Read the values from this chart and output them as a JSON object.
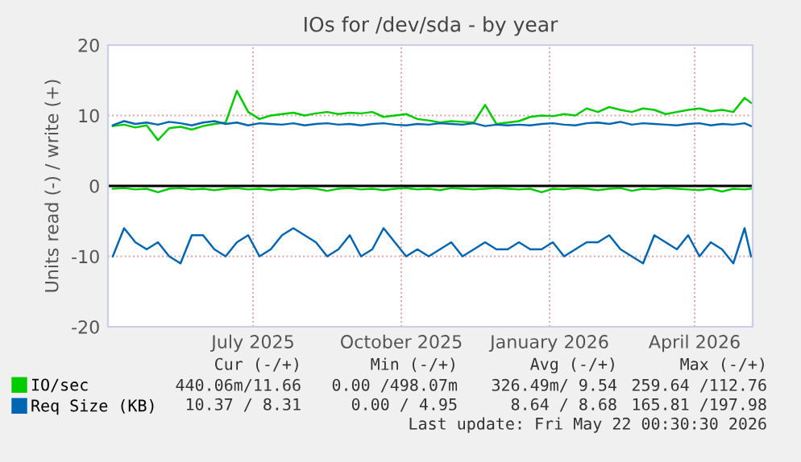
{
  "chart_data": {
    "type": "line",
    "title": "IOs for /dev/sda - by year",
    "ylabel": "Units read (-) / write (+)",
    "x": [
      "2025-04-20",
      "2025-04-27",
      "2025-05-04",
      "2025-05-11",
      "2025-05-18",
      "2025-05-25",
      "2025-06-01",
      "2025-06-08",
      "2025-06-15",
      "2025-06-22",
      "2025-06-29",
      "2025-07-06",
      "2025-07-13",
      "2025-07-20",
      "2025-07-27",
      "2025-08-03",
      "2025-08-10",
      "2025-08-17",
      "2025-08-24",
      "2025-08-31",
      "2025-09-07",
      "2025-09-14",
      "2025-09-21",
      "2025-09-28",
      "2025-10-05",
      "2025-10-12",
      "2025-10-19",
      "2025-10-26",
      "2025-11-02",
      "2025-11-09",
      "2025-11-16",
      "2025-11-23",
      "2025-11-30",
      "2025-12-07",
      "2025-12-14",
      "2025-12-21",
      "2025-12-28",
      "2026-01-04",
      "2026-01-11",
      "2026-01-18",
      "2026-01-25",
      "2026-02-01",
      "2026-02-08",
      "2026-02-15",
      "2026-02-22",
      "2026-03-01",
      "2026-03-08",
      "2026-03-15",
      "2026-03-22",
      "2026-03-29",
      "2026-04-05",
      "2026-04-12",
      "2026-04-19",
      "2026-04-26",
      "2026-05-03",
      "2026-05-10",
      "2026-05-17",
      "2026-05-21"
    ],
    "series": [
      {
        "name": "IO/sec",
        "color": "#00cc00",
        "values": [
          8.5,
          8.7,
          8.3,
          8.6,
          6.5,
          8.2,
          8.4,
          8.0,
          8.5,
          8.8,
          9.0,
          13.5,
          10.5,
          9.5,
          10,
          10.2,
          10.4,
          10,
          10.3,
          10.5,
          10.2,
          10.4,
          10.3,
          10.5,
          9.8,
          10,
          10.2,
          9.5,
          9.3,
          9.0,
          9.2,
          9.1,
          9.0,
          11.5,
          8.8,
          9.0,
          9.2,
          9.8,
          10,
          9.9,
          10.2,
          10,
          11,
          10.5,
          11.2,
          10.8,
          10.5,
          11,
          10.8,
          10.2,
          10.5,
          10.8,
          11,
          10.6,
          10.8,
          10.5,
          12.5,
          11.8
        ]
      },
      {
        "name": "Req Size (KB)",
        "color": "#0066b3",
        "values": [
          8.6,
          9.2,
          8.8,
          9.0,
          8.7,
          9.1,
          8.9,
          8.6,
          9.0,
          9.2,
          8.8,
          9.0,
          8.6,
          8.9,
          8.8,
          8.7,
          8.9,
          8.6,
          8.8,
          8.9,
          8.7,
          8.8,
          8.6,
          8.8,
          8.9,
          8.7,
          8.6,
          8.8,
          8.7,
          8.9,
          8.8,
          8.7,
          8.9,
          8.5,
          8.7,
          8.6,
          8.7,
          8.6,
          8.8,
          8.9,
          8.7,
          8.6,
          8.9,
          9.0,
          8.8,
          9.1,
          8.7,
          8.9,
          8.8,
          8.7,
          8.6,
          8.8,
          8.9,
          8.6,
          8.8,
          8.7,
          8.9,
          8.5
        ]
      },
      {
        "color": "#00cc00",
        "values": [
          -0.4,
          -0.3,
          -0.5,
          -0.4,
          -0.9,
          -0.4,
          -0.3,
          -0.5,
          -0.4,
          -0.6,
          -0.4,
          -0.3,
          -0.5,
          -0.4,
          -0.6,
          -0.4,
          -0.5,
          -0.3,
          -0.4,
          -0.7,
          -0.4,
          -0.3,
          -0.5,
          -0.4,
          -0.6,
          -0.4,
          -0.3,
          -0.5,
          -0.4,
          -0.6,
          -0.3,
          -0.4,
          -0.5,
          -0.4,
          -0.3,
          -0.4,
          -0.5,
          -0.4,
          -0.9,
          -0.4,
          -0.5,
          -0.3,
          -0.4,
          -0.6,
          -0.4,
          -0.3,
          -0.7,
          -0.4,
          -0.5,
          -0.3,
          -0.4,
          -0.5,
          -0.6,
          -0.4,
          -0.8,
          -0.4,
          -0.5,
          -0.4
        ]
      },
      {
        "color": "#0066b3",
        "values": [
          -10,
          -6,
          -8,
          -9,
          -8,
          -10,
          -11,
          -7,
          -7,
          -9,
          -10,
          -8,
          -7,
          -10,
          -9,
          -7,
          -6,
          -7,
          -8,
          -10,
          -9,
          -7,
          -10,
          -9,
          -6,
          -8,
          -10,
          -9,
          -10,
          -9,
          -8,
          -10,
          -9,
          -8,
          -9,
          -9,
          -8,
          -9,
          -9,
          -8,
          -10,
          -9,
          -8,
          -8,
          -7,
          -9,
          -10,
          -11,
          -7,
          -8,
          -9,
          -7,
          -10,
          -8,
          -9,
          -11,
          -6,
          -10
        ]
      }
    ],
    "xlim": [
      "2025-04-17",
      "2026-05-22"
    ],
    "xticks": [
      {
        "value": "2025-07-16",
        "label": "July 2025"
      },
      {
        "value": "2025-10-16",
        "label": "October 2025"
      },
      {
        "value": "2026-01-16",
        "label": "January 2026"
      },
      {
        "value": "2026-04-16",
        "label": "April 2026"
      }
    ],
    "ylim": [
      -20,
      20
    ],
    "yticks": [
      -20,
      -10,
      0,
      10,
      20
    ],
    "ref_lines": [
      {
        "axis": "y",
        "value": 0,
        "color": "#000000"
      }
    ],
    "grid": true,
    "legend": "bottom",
    "marker": "none",
    "line_style": "solid",
    "annotations": [
      "Cur (-/+)",
      "Min (-/+)",
      "Avg (-/+)",
      "Max (-/+)",
      "440.06m/11.66",
      "0.00 /498.07m",
      "326.49m/ 9.54",
      "259.64 /112.76",
      "10.37 / 8.31",
      "0.00 / 4.95",
      "8.64 / 8.68",
      "165.81 /197.98",
      "Last update: Fri May 22 00:30:30 2026"
    ]
  }
}
